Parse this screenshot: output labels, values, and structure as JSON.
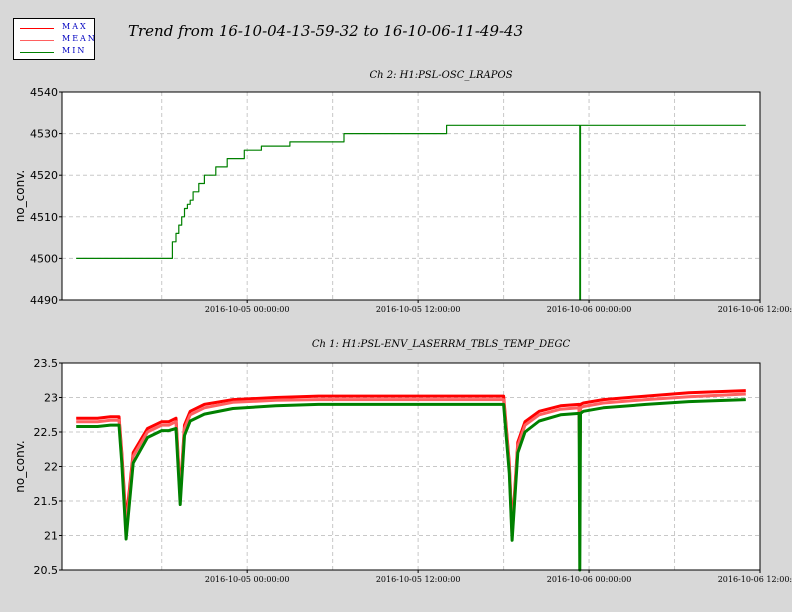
{
  "legend": {
    "items": [
      {
        "label": "MAX",
        "color": "#ff0000"
      },
      {
        "label": "MEAN",
        "color": "#ff6060"
      },
      {
        "label": "MIN",
        "color": "#008000"
      }
    ]
  },
  "title": "Trend from 16-10-04-13-59-32 to 16-10-06-11-49-43",
  "chart_data": [
    {
      "type": "line",
      "title": "Ch 2: H1:PSL-OSC_LRAPOS",
      "ylabel": "no_conv.",
      "xlabel": "",
      "ylim": [
        4490,
        4540
      ],
      "yticks": [
        "4490",
        "4500",
        "4510",
        "4520",
        "4530",
        "4540"
      ],
      "xlim": [
        -13.0,
        36.0
      ],
      "xticks": [
        {
          "x": 0,
          "label": "2016-10-05 00:00:00"
        },
        {
          "x": 12,
          "label": "2016-10-05 12:00:00"
        },
        {
          "x": 24,
          "label": "2016-10-06 00:00:00"
        },
        {
          "x": 36,
          "label": "2016-10-06 12:00:00"
        }
      ],
      "grid": true,
      "x_unit": "hours relative to 2016-10-05 00:00:00",
      "series": [
        {
          "name": "MIN",
          "color": "#008000",
          "x": [
            -12.0,
            -5.25,
            -5.25,
            -5.0,
            -5.0,
            -4.8,
            -4.8,
            -4.6,
            -4.6,
            -4.4,
            -4.4,
            -4.2,
            -4.2,
            -4.0,
            -4.0,
            -3.8,
            -3.8,
            -3.4,
            -3.4,
            -3.0,
            -3.0,
            -2.2,
            -2.2,
            -1.4,
            -1.4,
            -0.2,
            -0.2,
            1.0,
            1.0,
            3.0,
            3.0,
            6.8,
            6.8,
            14.0,
            14.0,
            23.35,
            23.35,
            23.4,
            23.4,
            35.0
          ],
          "y": [
            4500,
            4500,
            4504,
            4504,
            4506,
            4506,
            4508,
            4508,
            4510,
            4510,
            4512,
            4512,
            4513,
            4513,
            4514,
            4514,
            4516,
            4516,
            4518,
            4518,
            4520,
            4520,
            4522,
            4522,
            4524,
            4524,
            4526,
            4526,
            4527,
            4527,
            4528,
            4528,
            4530,
            4530,
            4532,
            4532,
            4490,
            4490,
            4532,
            4532
          ]
        }
      ]
    },
    {
      "type": "line",
      "title": "Ch 1: H1:PSL-ENV_LASERRM_TBLS_TEMP_DEGC",
      "ylabel": "no_conv.",
      "xlabel": "",
      "ylim": [
        20.5,
        23.5
      ],
      "yticks": [
        "20.5",
        "21",
        "21.5",
        "22",
        "22.5",
        "23",
        "23.5"
      ],
      "xlim": [
        -13.0,
        36.0
      ],
      "xticks": [
        {
          "x": 0,
          "label": "2016-10-05 00:00:00"
        },
        {
          "x": 12,
          "label": "2016-10-05 12:00:00"
        },
        {
          "x": 24,
          "label": "2016-10-06 00:00:00"
        },
        {
          "x": 36,
          "label": "2016-10-06 12:00:00"
        }
      ],
      "grid": true,
      "x_unit": "hours relative to 2016-10-05 00:00:00",
      "series": [
        {
          "name": "MAX",
          "color": "#ff0000",
          "x": [
            -12.0,
            -10.5,
            -9.6,
            -9.0,
            -8.8,
            -8.5,
            -8.0,
            -7.0,
            -6.0,
            -5.5,
            -5.0,
            -4.7,
            -4.4,
            -4.0,
            -3.0,
            -1.0,
            2.0,
            5.0,
            10.0,
            14.0,
            18.0,
            18.4,
            18.6,
            19.0,
            19.5,
            20.5,
            22.0,
            23.3,
            23.35,
            23.4,
            23.6,
            25.0,
            28.0,
            31.0,
            35.0
          ],
          "y": [
            22.7,
            22.7,
            22.72,
            22.72,
            22.2,
            21.2,
            22.2,
            22.55,
            22.65,
            22.65,
            22.7,
            21.6,
            22.6,
            22.8,
            22.9,
            22.97,
            23.0,
            23.02,
            23.02,
            23.02,
            23.02,
            22.05,
            21.05,
            22.35,
            22.65,
            22.8,
            22.88,
            22.9,
            22.0,
            22.9,
            22.92,
            22.97,
            23.02,
            23.07,
            23.1
          ]
        },
        {
          "name": "MEAN",
          "color": "#ff6060",
          "x": [
            -12.0,
            -10.5,
            -9.6,
            -9.0,
            -8.8,
            -8.5,
            -8.0,
            -7.0,
            -6.0,
            -5.5,
            -5.0,
            -4.7,
            -4.4,
            -4.0,
            -3.0,
            -1.0,
            2.0,
            5.0,
            10.0,
            14.0,
            18.0,
            18.4,
            18.6,
            19.0,
            19.5,
            20.5,
            22.0,
            23.3,
            23.35,
            23.4,
            23.6,
            25.0,
            28.0,
            31.0,
            35.0
          ],
          "y": [
            22.65,
            22.65,
            22.67,
            22.67,
            22.15,
            21.1,
            22.15,
            22.5,
            22.6,
            22.6,
            22.65,
            21.55,
            22.55,
            22.75,
            22.85,
            22.93,
            22.96,
            22.97,
            22.97,
            22.97,
            22.97,
            22.0,
            21.0,
            22.3,
            22.6,
            22.75,
            22.83,
            22.85,
            21.9,
            22.85,
            22.87,
            22.92,
            22.97,
            23.01,
            23.05
          ]
        },
        {
          "name": "MIN",
          "color": "#008000",
          "x": [
            -12.0,
            -10.5,
            -9.6,
            -9.0,
            -8.8,
            -8.5,
            -8.0,
            -7.0,
            -6.0,
            -5.5,
            -5.0,
            -4.7,
            -4.4,
            -4.0,
            -3.0,
            -1.0,
            2.0,
            5.0,
            10.0,
            14.0,
            18.0,
            18.4,
            18.6,
            19.0,
            19.5,
            20.5,
            22.0,
            23.3,
            23.35,
            23.4,
            23.6,
            25.0,
            28.0,
            31.0,
            35.0
          ],
          "y": [
            22.58,
            22.58,
            22.6,
            22.6,
            22.05,
            20.95,
            22.05,
            22.42,
            22.52,
            22.52,
            22.55,
            21.45,
            22.45,
            22.66,
            22.76,
            22.84,
            22.88,
            22.9,
            22.9,
            22.9,
            22.9,
            21.9,
            20.93,
            22.2,
            22.5,
            22.66,
            22.75,
            22.77,
            20.5,
            22.77,
            22.8,
            22.85,
            22.9,
            22.94,
            22.97
          ]
        }
      ]
    }
  ]
}
